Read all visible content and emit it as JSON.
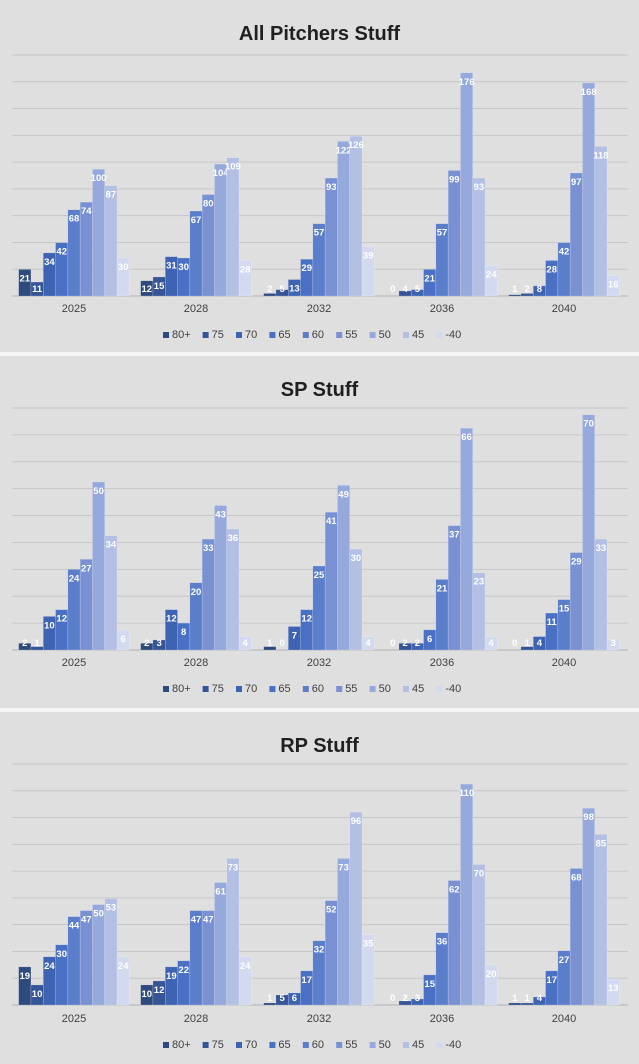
{
  "chart_data": [
    {
      "type": "bar",
      "title": "All Pitchers Stuff",
      "categories": [
        "2025",
        "2028",
        "2032",
        "2036",
        "2040"
      ],
      "legend": [
        "80+",
        "75",
        "70",
        "65",
        "60",
        "55",
        "50",
        "45",
        "-40"
      ],
      "legend_position": "bottom",
      "ylim": [
        0,
        190
      ],
      "grid": true,
      "series": [
        {
          "name": "80+",
          "values": [
            21,
            12,
            2,
            0,
            1
          ]
        },
        {
          "name": "75",
          "values": [
            11,
            15,
            5,
            4,
            2
          ]
        },
        {
          "name": "70",
          "values": [
            34,
            31,
            13,
            5,
            8
          ]
        },
        {
          "name": "65",
          "values": [
            42,
            30,
            29,
            21,
            28
          ]
        },
        {
          "name": "60",
          "values": [
            68,
            67,
            57,
            57,
            42
          ]
        },
        {
          "name": "55",
          "values": [
            74,
            80,
            93,
            99,
            97
          ]
        },
        {
          "name": "50",
          "values": [
            100,
            104,
            122,
            176,
            168
          ]
        },
        {
          "name": "45",
          "values": [
            87,
            109,
            126,
            93,
            118
          ]
        },
        {
          "name": "-40",
          "values": [
            30,
            28,
            39,
            24,
            16
          ]
        }
      ]
    },
    {
      "type": "bar",
      "title": "SP Stuff",
      "categories": [
        "2025",
        "2028",
        "2032",
        "2036",
        "2040"
      ],
      "legend": [
        "80+",
        "75",
        "70",
        "65",
        "60",
        "55",
        "50",
        "45",
        "-40"
      ],
      "legend_position": "bottom",
      "ylim": [
        0,
        72
      ],
      "grid": true,
      "series": [
        {
          "name": "80+",
          "values": [
            2,
            2,
            1,
            0,
            0
          ]
        },
        {
          "name": "75",
          "values": [
            1,
            3,
            0,
            2,
            1
          ]
        },
        {
          "name": "70",
          "values": [
            10,
            12,
            7,
            2,
            4
          ]
        },
        {
          "name": "65",
          "values": [
            12,
            8,
            12,
            6,
            11
          ]
        },
        {
          "name": "60",
          "values": [
            24,
            20,
            25,
            21,
            15
          ]
        },
        {
          "name": "55",
          "values": [
            27,
            33,
            41,
            37,
            29
          ]
        },
        {
          "name": "50",
          "values": [
            50,
            43,
            49,
            66,
            70
          ]
        },
        {
          "name": "45",
          "values": [
            34,
            36,
            30,
            23,
            33
          ]
        },
        {
          "name": "-40",
          "values": [
            6,
            4,
            4,
            4,
            3
          ]
        }
      ]
    },
    {
      "type": "bar",
      "title": "RP Stuff",
      "categories": [
        "2025",
        "2028",
        "2032",
        "2036",
        "2040"
      ],
      "legend": [
        "80+",
        "75",
        "70",
        "65",
        "60",
        "55",
        "50",
        "45",
        "-40"
      ],
      "legend_position": "bottom",
      "ylim": [
        0,
        120
      ],
      "grid": true,
      "series": [
        {
          "name": "80+",
          "values": [
            19,
            10,
            1,
            0,
            1
          ]
        },
        {
          "name": "75",
          "values": [
            10,
            12,
            5,
            2,
            1
          ]
        },
        {
          "name": "70",
          "values": [
            24,
            19,
            6,
            3,
            4
          ]
        },
        {
          "name": "65",
          "values": [
            30,
            22,
            17,
            15,
            17
          ]
        },
        {
          "name": "60",
          "values": [
            44,
            47,
            32,
            36,
            27
          ]
        },
        {
          "name": "55",
          "values": [
            47,
            47,
            52,
            62,
            68
          ]
        },
        {
          "name": "50",
          "values": [
            50,
            61,
            73,
            110,
            98
          ]
        },
        {
          "name": "45",
          "values": [
            53,
            73,
            96,
            70,
            85
          ]
        },
        {
          "name": "-40",
          "values": [
            24,
            24,
            35,
            20,
            13
          ]
        }
      ]
    }
  ],
  "colors": [
    "#2f4a7e",
    "#355596",
    "#3e63b3",
    "#4a70c4",
    "#5b7ecb",
    "#7990d3",
    "#96a9dc",
    "#b3c0e4",
    "#d3daef"
  ]
}
